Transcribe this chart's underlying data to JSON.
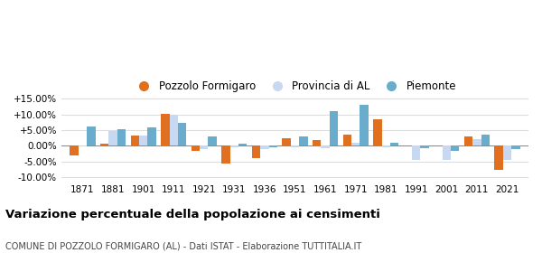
{
  "years": [
    1871,
    1881,
    1901,
    1911,
    1921,
    1931,
    1936,
    1951,
    1961,
    1971,
    1981,
    1991,
    2001,
    2011,
    2021
  ],
  "pozzolo": [
    -3.0,
    0.7,
    3.2,
    10.2,
    -1.5,
    -5.6,
    -3.8,
    2.3,
    2.0,
    3.5,
    8.5,
    -0.1,
    -0.2,
    2.9,
    -7.5
  ],
  "provincia": [
    -0.1,
    4.8,
    3.2,
    9.8,
    -0.9,
    -0.5,
    -0.9,
    -0.5,
    -0.6,
    1.0,
    -0.5,
    -4.5,
    -4.5,
    2.1,
    -4.5
  ],
  "piemonte": [
    6.2,
    5.4,
    5.8,
    7.2,
    3.0,
    0.6,
    -0.5,
    2.9,
    11.1,
    13.1,
    1.1,
    -0.8,
    -1.7,
    3.5,
    -1.0
  ],
  "color_pozzolo": "#e07020",
  "color_provincia": "#c8d8f0",
  "color_piemonte": "#6aaccc",
  "title": "Variazione percentuale della popolazione ai censimenti",
  "subtitle": "COMUNE DI POZZOLO FORMIGARO (AL) - Dati ISTAT - Elaborazione TUTTITALIA.IT",
  "ylim": [
    -11,
    16
  ],
  "yticks": [
    -10,
    -5,
    0,
    5,
    10,
    15
  ],
  "ytick_labels": [
    "-10.00%",
    "-5.00%",
    "0.00%",
    "+5.00%",
    "+10.00%",
    "+15.00%"
  ],
  "background_color": "#ffffff",
  "grid_color": "#dddddd",
  "legend_labels": [
    "Pozzolo Formigaro",
    "Provincia di AL",
    "Piemonte"
  ]
}
